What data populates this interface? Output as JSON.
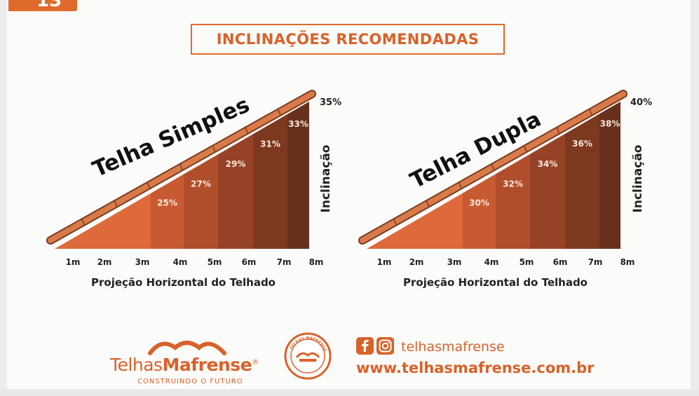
{
  "header": {
    "corner_badge": "13",
    "title": "INCLINAÇÕES RECOMENDADAS"
  },
  "charts": [
    {
      "label": "Telha Simples",
      "max_label": "35%",
      "axis_vertical": "Inclinação",
      "axis_horizontal": "Projeção Horizontal do Telhado",
      "x_ticks": [
        "1m",
        "2m",
        "3m",
        "4m",
        "5m",
        "6m",
        "7m",
        "8m"
      ],
      "segments": [
        "25%",
        "27%",
        "29%",
        "31%",
        "33%"
      ]
    },
    {
      "label": "Telha Dupla",
      "max_label": "40%",
      "axis_vertical": "Inclinação",
      "axis_horizontal": "Projeção Horizontal do Telhado",
      "x_ticks": [
        "1m",
        "2m",
        "3m",
        "4m",
        "5m",
        "6m",
        "7m",
        "8m"
      ],
      "segments": [
        "30%",
        "32%",
        "34%",
        "36%",
        "38%"
      ]
    }
  ],
  "colors": {
    "accent": "#e06a2c",
    "segment_shades": [
      "#de6a3c",
      "#c85a32",
      "#b04e2c",
      "#964226",
      "#7d3820",
      "#67301c"
    ]
  },
  "icons": [
    "facebook-icon",
    "instagram-icon",
    "roof-logo-icon",
    "seal-icon"
  ],
  "footer": {
    "logo_part1": "Telhas",
    "logo_part2": "Mafrense",
    "logo_mark": "®",
    "tagline": "CONSTRUINDO O FUTURO",
    "seal_text": "TELHAS MAFRENSE",
    "social_handle": "telhasmafrense",
    "website": "www.telhasmafrense.com.br"
  }
}
